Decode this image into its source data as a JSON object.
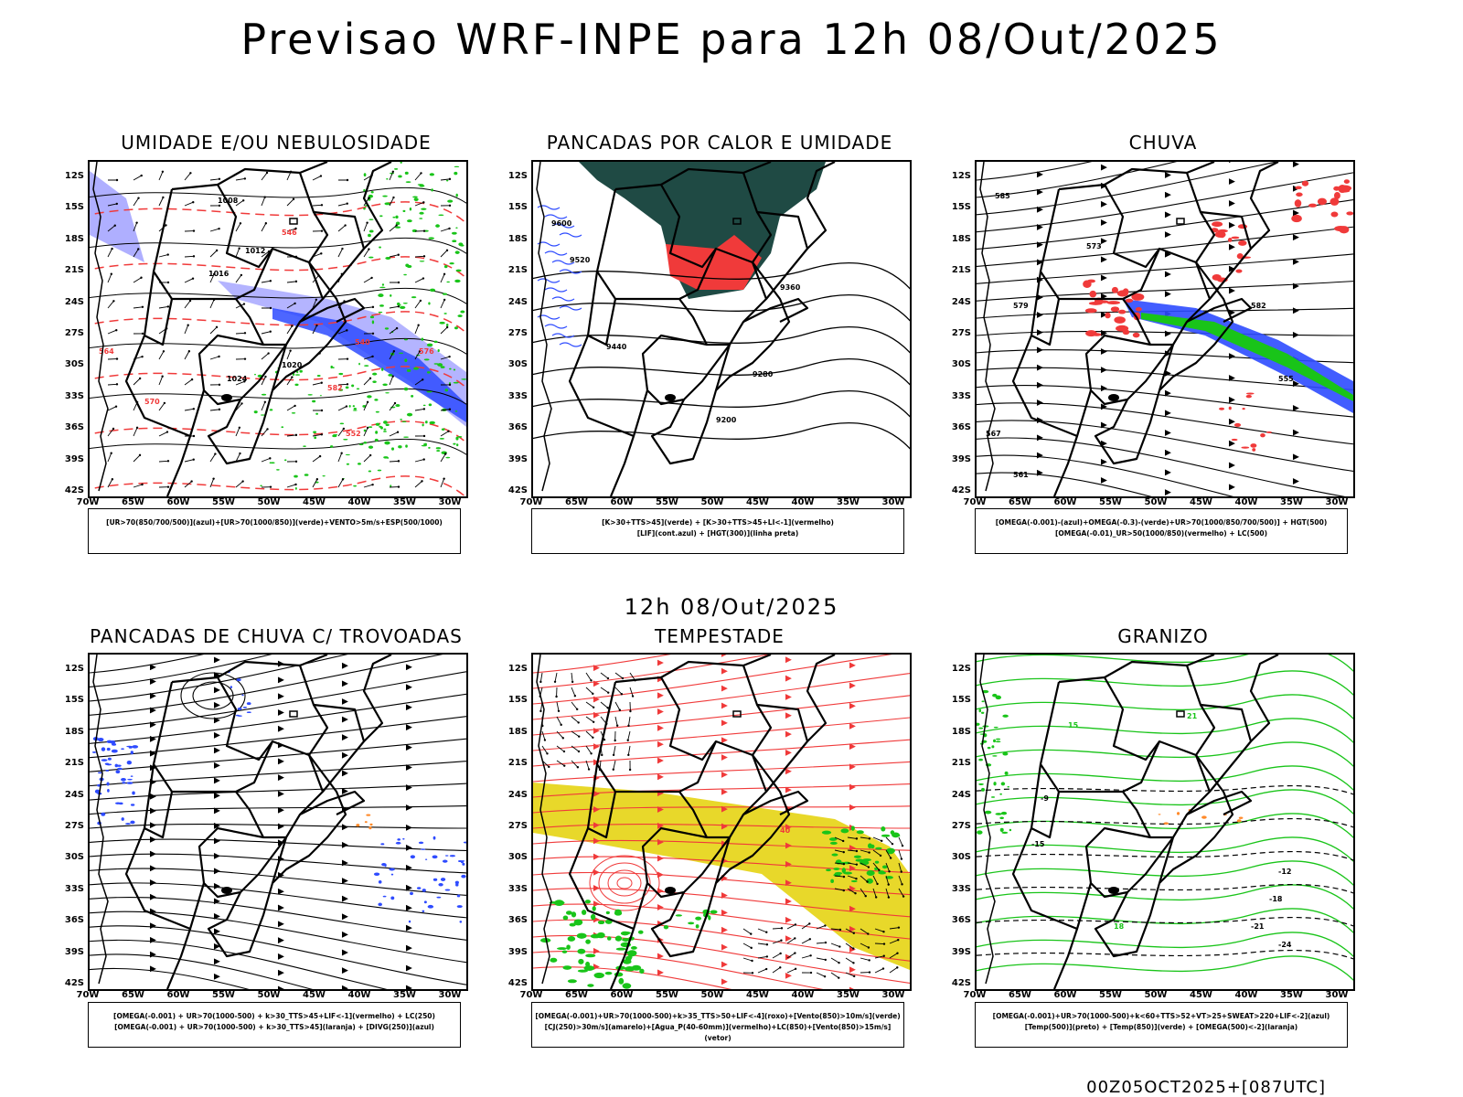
{
  "title": "Previsao WRF-INPE  para 12h 08/Out/2025",
  "mid_title": "12h 08/Out/2025",
  "footer_stamp": "00Z05OCT2025+[087UTC]",
  "lat_ticks": [
    "12S",
    "15S",
    "18S",
    "21S",
    "24S",
    "27S",
    "30S",
    "33S",
    "36S",
    "39S",
    "42S"
  ],
  "lon_ticks": [
    "70W",
    "65W",
    "60W",
    "55W",
    "50W",
    "45W",
    "40W",
    "35W",
    "30W"
  ],
  "colors": {
    "blue": "#2e4bff",
    "green": "#19c419",
    "red": "#f03a3a",
    "yellow": "#e8d82a",
    "darkteal": "#1f4a44",
    "lavender": "#9b9bff"
  },
  "panels": [
    {
      "title": "UMIDADE E/OU NEBULOSIDADE",
      "legend": [
        "[UR>70(850/700/500)](azul)+[UR>70(1000/850)](verde)+VENTO>5m/s+ESP(500/1000)"
      ],
      "labels": [
        "1008",
        "1012",
        "1016",
        "1020",
        "1024",
        "570",
        "576",
        "582",
        "552",
        "546",
        "540",
        "564"
      ]
    },
    {
      "title": "PANCADAS POR CALOR E UMIDADE",
      "legend": [
        "[K>30+TTS>45](verde) + [K>30+TTS>45+LI<-1](vermelho)",
        "[LIF](cont.azul) + [HGT(300)](linha preta)"
      ],
      "labels": [
        "9600",
        "9520",
        "9440",
        "9360",
        "9280",
        "9200"
      ]
    },
    {
      "title": "CHUVA",
      "legend": [
        "[OMEGA(-0.001)-(azul)+OMEGA(-0.3)-(verde)+UR>70(1000/850/700/500)] + HGT(500)",
        "[OMEGA(-0.01)_UR>50(1000/850)(vermelho) + LC(500)"
      ],
      "labels": [
        "585",
        "579",
        "573",
        "567",
        "561",
        "555",
        "582"
      ]
    },
    {
      "title": "PANCADAS DE CHUVA C/ TROVOADAS",
      "legend": [
        "[OMEGA(-0.001) + UR>70(1000-500) + k>30_TTS>45+LIF<-1](vermelho) + LC(250)",
        "[OMEGA(-0.001) + UR>70(1000-500) + k>30_TTS>45](laranja) + [DIVG(250)](azul)"
      ],
      "labels": []
    },
    {
      "title": "TEMPESTADE",
      "legend": [
        "[OMEGA(-0.001)+UR>70(1000-500)+k>35_TTS>50+LIF<-4](roxo)+[Vento(850)>10m/s](verde)",
        "[CJ(250)>30m/s](amarelo)+[Agua_P(40-60mm)](vermelho)+LC(850)+[Vento(850)>15m/s](vetor)"
      ],
      "labels": [
        "40"
      ]
    },
    {
      "title": "GRANIZO",
      "legend": [
        "[OMEGA(-0.001)+UR>70(1000-500)+k<60+TTS>52+VT>25+SWEAT>220+LIF<-2](azul)",
        "[Temp(500)](preto) + [Temp(850)](verde) + [OMEGA(500)<-2](laranja)"
      ],
      "labels": [
        "-9",
        "-12",
        "-15",
        "-18",
        "-21",
        "-24",
        "15",
        "18",
        "21"
      ]
    }
  ]
}
